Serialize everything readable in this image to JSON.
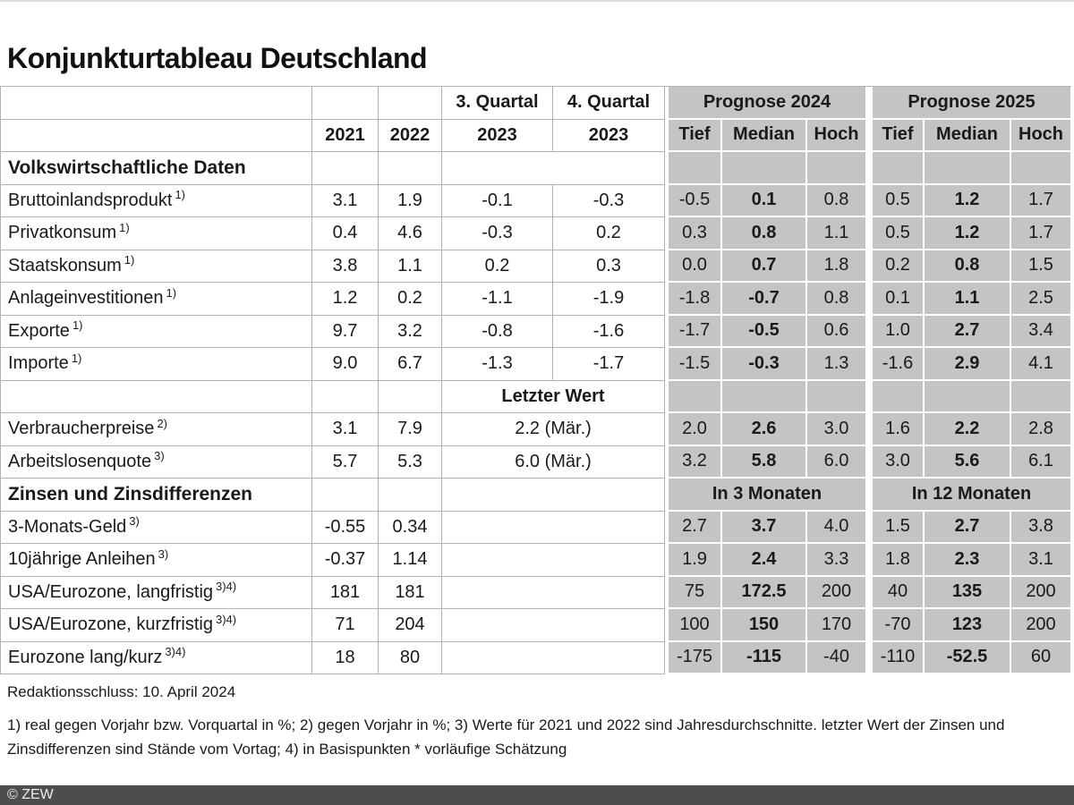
{
  "title": "Konjunkturtableau Deutschland",
  "colors": {
    "gray_bg": "#c4c4c4",
    "cell_border": "#b3b3b3",
    "bar_bg": "#4d4d4d",
    "bar_text": "#ececec"
  },
  "table": {
    "header": {
      "q3": "3. Quartal",
      "q4": "4. Quartal",
      "prognose24": "Prognose 2024",
      "prognose25": "Prognose 2025",
      "years": [
        "2021",
        "2022",
        "2023",
        "2023"
      ],
      "tmh": [
        "Tief",
        "Median",
        "Hoch"
      ]
    },
    "rows": [
      {
        "type": "sec",
        "label": "Volkswirtschaftliche Daten"
      },
      {
        "type": "econ",
        "label": "Bruttoinlandsprodukt",
        "sup": "1)",
        "y21": "3.1",
        "y22": "1.9",
        "q3": "-0.1",
        "q4": "-0.3",
        "p24": [
          "-0.5",
          "0.1",
          "0.8"
        ],
        "p25": [
          "0.5",
          "1.2",
          "1.7"
        ]
      },
      {
        "type": "econ",
        "label": "Privatkonsum",
        "sup": "1)",
        "y21": "0.4",
        "y22": "4.6",
        "q3": "-0.3",
        "q4": "0.2",
        "p24": [
          "0.3",
          "0.8",
          "1.1"
        ],
        "p25": [
          "0.5",
          "1.2",
          "1.7"
        ]
      },
      {
        "type": "econ",
        "label": "Staatskonsum",
        "sup": "1)",
        "y21": "3.8",
        "y22": "1.1",
        "q3": "0.2",
        "q4": "0.3",
        "p24": [
          "0.0",
          "0.7",
          "1.8"
        ],
        "p25": [
          "0.2",
          "0.8",
          "1.5"
        ]
      },
      {
        "type": "econ",
        "label": "Anlageinvestitionen",
        "sup": "1)",
        "y21": "1.2",
        "y22": "0.2",
        "q3": "-1.1",
        "q4": "-1.9",
        "p24": [
          "-1.8",
          "-0.7",
          "0.8"
        ],
        "p25": [
          "0.1",
          "1.1",
          "2.5"
        ]
      },
      {
        "type": "econ",
        "label": "Exporte",
        "sup": "1)",
        "y21": "9.7",
        "y22": "3.2",
        "q3": "-0.8",
        "q4": "-1.6",
        "p24": [
          "-1.7",
          "-0.5",
          "0.6"
        ],
        "p25": [
          "1.0",
          "2.7",
          "3.4"
        ]
      },
      {
        "type": "econ",
        "label": "Importe",
        "sup": "1)",
        "y21": "9.0",
        "y22": "6.7",
        "q3": "-1.3",
        "q4": "-1.7",
        "p24": [
          "-1.5",
          "-0.3",
          "1.3"
        ],
        "p25": [
          "-1.6",
          "2.9",
          "4.1"
        ]
      },
      {
        "type": "letzter",
        "label": "Letzter Wert"
      },
      {
        "type": "price",
        "label": "Verbraucherpreise",
        "sup": "2)",
        "y21": "3.1",
        "y22": "7.9",
        "letzter": "2.2 (Mär.)",
        "p24": [
          "2.0",
          "2.6",
          "3.0"
        ],
        "p25": [
          "1.6",
          "2.2",
          "2.8"
        ]
      },
      {
        "type": "price",
        "label": "Arbeitslosenquote",
        "sup": "3)",
        "y21": "5.7",
        "y22": "5.3",
        "letzter": "6.0 (Mär.)",
        "p24": [
          "3.2",
          "5.8",
          "6.0"
        ],
        "p25": [
          "3.0",
          "5.6",
          "6.1"
        ]
      },
      {
        "type": "sec2",
        "label": "Zinsen und Zinsdifferenzen",
        "h24": "In 3 Monaten",
        "h25": "In 12 Monaten"
      },
      {
        "type": "zins",
        "label": "3-Monats-Geld",
        "sup": "3)",
        "y21": "-0.55",
        "y22": "0.34",
        "p24": [
          "2.7",
          "3.7",
          "4.0"
        ],
        "p25": [
          "1.5",
          "2.7",
          "3.8"
        ]
      },
      {
        "type": "zins",
        "label": "10jährige Anleihen",
        "sup": "3)",
        "y21": "-0.37",
        "y22": "1.14",
        "p24": [
          "1.9",
          "2.4",
          "3.3"
        ],
        "p25": [
          "1.8",
          "2.3",
          "3.1"
        ]
      },
      {
        "type": "zins",
        "label": "USA/Eurozone, langfristig",
        "sup": "3)4)",
        "y21": "181",
        "y22": "181",
        "p24": [
          "75",
          "172.5",
          "200"
        ],
        "p25": [
          "40",
          "135",
          "200"
        ]
      },
      {
        "type": "zins",
        "label": "USA/Eurozone, kurzfristig",
        "sup": "3)4)",
        "y21": "71",
        "y22": "204",
        "p24": [
          "100",
          "150",
          "170"
        ],
        "p25": [
          "-70",
          "123",
          "200"
        ]
      },
      {
        "type": "zins",
        "label": "Eurozone lang/kurz",
        "sup": "3)4)",
        "y21": "18",
        "y22": "80",
        "p24": [
          "-175",
          "-115",
          "-40"
        ],
        "p25": [
          "-110",
          "-52.5",
          "60"
        ]
      }
    ]
  },
  "footer": {
    "deadline": "Redaktionsschluss: 10. April 2024",
    "footnote": "1) real gegen Vorjahr bzw. Vorquartal in %; 2) gegen Vorjahr in %; 3) Werte für 2021 und 2022 sind Jahresdurchschnitte. letzter Wert der Zinsen und Zinsdifferenzen sind Stände vom Vortag; 4) in Basispunkten * vorläufige Schätzung",
    "copyright": "© ZEW"
  }
}
